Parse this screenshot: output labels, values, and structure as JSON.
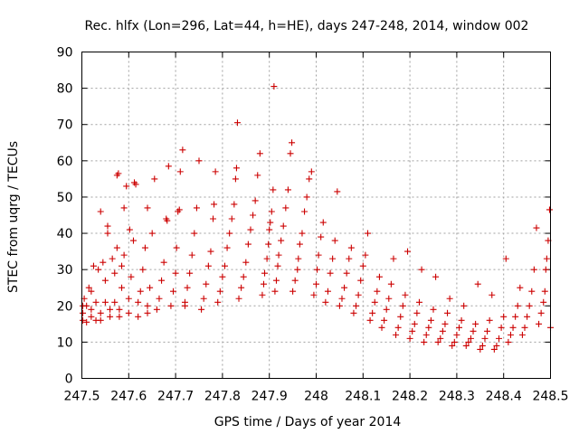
{
  "chart_data": {
    "type": "scatter",
    "title": "Rec. hlfx (Lon=296, Lat=44, h=HE), days 247-248, 2014, window 002",
    "xlabel": "GPS time / Days of year 2014",
    "ylabel": "STEC from uqrg / TECUs",
    "xlim": [
      247.5,
      248.5
    ],
    "ylim": [
      0,
      90
    ],
    "xticks": [
      247.5,
      247.6,
      247.7,
      247.8,
      247.9,
      248.0,
      248.1,
      248.2,
      248.3,
      248.4,
      248.5
    ],
    "xtick_labels": [
      "247.5",
      "247.6",
      "247.7",
      "247.8",
      "247.9",
      "248",
      "248.1",
      "248.2",
      "248.3",
      "248.4",
      "248.5"
    ],
    "yticks": [
      0,
      10,
      20,
      30,
      40,
      50,
      60,
      70,
      80,
      90
    ],
    "ytick_labels": [
      "0",
      "10",
      "20",
      "30",
      "40",
      "50",
      "60",
      "70",
      "80",
      "90"
    ],
    "grid": true,
    "marker": "+",
    "color": "#cc0000",
    "series": [
      {
        "name": "STEC",
        "points": [
          [
            247.502,
            16
          ],
          [
            247.502,
            18
          ],
          [
            247.502,
            20
          ],
          [
            247.505,
            22
          ],
          [
            247.51,
            15.5
          ],
          [
            247.51,
            20
          ],
          [
            247.515,
            25
          ],
          [
            247.52,
            17
          ],
          [
            247.52,
            19
          ],
          [
            247.52,
            24
          ],
          [
            247.525,
            31
          ],
          [
            247.53,
            16
          ],
          [
            247.53,
            21
          ],
          [
            247.535,
            30
          ],
          [
            247.54,
            16
          ],
          [
            247.54,
            18
          ],
          [
            247.54,
            46
          ],
          [
            247.545,
            32
          ],
          [
            247.55,
            21
          ],
          [
            247.55,
            27
          ],
          [
            247.555,
            42
          ],
          [
            247.555,
            40
          ],
          [
            247.56,
            17
          ],
          [
            247.56,
            19
          ],
          [
            247.565,
            33
          ],
          [
            247.57,
            21
          ],
          [
            247.57,
            29
          ],
          [
            247.575,
            36
          ],
          [
            247.575,
            56
          ],
          [
            247.578,
            56.5
          ],
          [
            247.58,
            17
          ],
          [
            247.58,
            19
          ],
          [
            247.585,
            25
          ],
          [
            247.585,
            31
          ],
          [
            247.59,
            34
          ],
          [
            247.59,
            47
          ],
          [
            247.595,
            53
          ],
          [
            247.6,
            18
          ],
          [
            247.6,
            22
          ],
          [
            247.602,
            41
          ],
          [
            247.605,
            28
          ],
          [
            247.61,
            38
          ],
          [
            247.612,
            54
          ],
          [
            247.615,
            53.5
          ],
          [
            247.62,
            17
          ],
          [
            247.62,
            21
          ],
          [
            247.625,
            24
          ],
          [
            247.63,
            30
          ],
          [
            247.635,
            36
          ],
          [
            247.64,
            18
          ],
          [
            247.64,
            20
          ],
          [
            247.64,
            47
          ],
          [
            247.645,
            25
          ],
          [
            247.65,
            40
          ],
          [
            247.655,
            55
          ],
          [
            247.66,
            19
          ],
          [
            247.665,
            22
          ],
          [
            247.67,
            27
          ],
          [
            247.675,
            32
          ],
          [
            247.68,
            44
          ],
          [
            247.682,
            43.5
          ],
          [
            247.685,
            58.5
          ],
          [
            247.69,
            20
          ],
          [
            247.695,
            24
          ],
          [
            247.7,
            29
          ],
          [
            247.702,
            36
          ],
          [
            247.705,
            46
          ],
          [
            247.708,
            46.5
          ],
          [
            247.71,
            57
          ],
          [
            247.715,
            63
          ],
          [
            247.72,
            20
          ],
          [
            247.72,
            21
          ],
          [
            247.725,
            25
          ],
          [
            247.73,
            29
          ],
          [
            247.735,
            34
          ],
          [
            247.74,
            40
          ],
          [
            247.745,
            47
          ],
          [
            247.75,
            60
          ],
          [
            247.755,
            19
          ],
          [
            247.76,
            22
          ],
          [
            247.765,
            26
          ],
          [
            247.77,
            31
          ],
          [
            247.775,
            35
          ],
          [
            247.78,
            44
          ],
          [
            247.782,
            48
          ],
          [
            247.785,
            57
          ],
          [
            247.79,
            21
          ],
          [
            247.795,
            24
          ],
          [
            247.8,
            28
          ],
          [
            247.805,
            31
          ],
          [
            247.81,
            36
          ],
          [
            247.815,
            40
          ],
          [
            247.82,
            44
          ],
          [
            247.825,
            48
          ],
          [
            247.828,
            55
          ],
          [
            247.83,
            58
          ],
          [
            247.832,
            70.5
          ],
          [
            247.835,
            22
          ],
          [
            247.84,
            25
          ],
          [
            247.845,
            28
          ],
          [
            247.85,
            32
          ],
          [
            247.855,
            37
          ],
          [
            247.86,
            41
          ],
          [
            247.865,
            45
          ],
          [
            247.87,
            49
          ],
          [
            247.875,
            56
          ],
          [
            247.88,
            62
          ],
          [
            247.885,
            23
          ],
          [
            247.888,
            26
          ],
          [
            247.89,
            29
          ],
          [
            247.895,
            33
          ],
          [
            247.898,
            37
          ],
          [
            247.9,
            41
          ],
          [
            247.902,
            43
          ],
          [
            247.905,
            46
          ],
          [
            247.908,
            52
          ],
          [
            247.91,
            80.5
          ],
          [
            247.912,
            24
          ],
          [
            247.915,
            27
          ],
          [
            247.918,
            31
          ],
          [
            247.92,
            34
          ],
          [
            247.925,
            38
          ],
          [
            247.93,
            42
          ],
          [
            247.935,
            47
          ],
          [
            247.94,
            52
          ],
          [
            247.945,
            62
          ],
          [
            247.948,
            65
          ],
          [
            247.95,
            24
          ],
          [
            247.955,
            27
          ],
          [
            247.96,
            30
          ],
          [
            247.962,
            33
          ],
          [
            247.965,
            37
          ],
          [
            247.97,
            40
          ],
          [
            247.975,
            46
          ],
          [
            247.98,
            50
          ],
          [
            247.985,
            55
          ],
          [
            247.99,
            57
          ],
          [
            247.995,
            23
          ],
          [
            248.0,
            26
          ],
          [
            248.002,
            30
          ],
          [
            248.005,
            34
          ],
          [
            248.01,
            39
          ],
          [
            248.015,
            43
          ],
          [
            248.02,
            21
          ],
          [
            248.025,
            24
          ],
          [
            248.03,
            29
          ],
          [
            248.035,
            33
          ],
          [
            248.04,
            38
          ],
          [
            248.045,
            51.5
          ],
          [
            248.05,
            20
          ],
          [
            248.055,
            22
          ],
          [
            248.06,
            25
          ],
          [
            248.065,
            29
          ],
          [
            248.07,
            33
          ],
          [
            248.075,
            36
          ],
          [
            248.08,
            18
          ],
          [
            248.085,
            20
          ],
          [
            248.09,
            23
          ],
          [
            248.095,
            27
          ],
          [
            248.1,
            31
          ],
          [
            248.105,
            34
          ],
          [
            248.11,
            40
          ],
          [
            248.115,
            16
          ],
          [
            248.12,
            18
          ],
          [
            248.125,
            21
          ],
          [
            248.13,
            24
          ],
          [
            248.135,
            28
          ],
          [
            248.14,
            14
          ],
          [
            248.145,
            16
          ],
          [
            248.15,
            19
          ],
          [
            248.155,
            22
          ],
          [
            248.16,
            26
          ],
          [
            248.165,
            33
          ],
          [
            248.17,
            12
          ],
          [
            248.175,
            14
          ],
          [
            248.18,
            17
          ],
          [
            248.185,
            20
          ],
          [
            248.19,
            23
          ],
          [
            248.195,
            35
          ],
          [
            248.2,
            11
          ],
          [
            248.205,
            13
          ],
          [
            248.21,
            15
          ],
          [
            248.215,
            18
          ],
          [
            248.22,
            21
          ],
          [
            248.225,
            30
          ],
          [
            248.23,
            10
          ],
          [
            248.235,
            12
          ],
          [
            248.24,
            14
          ],
          [
            248.245,
            16
          ],
          [
            248.25,
            19
          ],
          [
            248.255,
            28
          ],
          [
            248.26,
            10
          ],
          [
            248.265,
            11
          ],
          [
            248.27,
            13
          ],
          [
            248.275,
            15
          ],
          [
            248.28,
            18
          ],
          [
            248.285,
            22
          ],
          [
            248.29,
            9
          ],
          [
            248.295,
            10
          ],
          [
            248.3,
            12
          ],
          [
            248.305,
            14
          ],
          [
            248.31,
            16
          ],
          [
            248.315,
            20
          ],
          [
            248.32,
            9
          ],
          [
            248.325,
            10
          ],
          [
            248.33,
            11
          ],
          [
            248.335,
            13
          ],
          [
            248.34,
            15
          ],
          [
            248.345,
            26
          ],
          [
            248.35,
            8
          ],
          [
            248.355,
            9
          ],
          [
            248.36,
            11
          ],
          [
            248.365,
            13
          ],
          [
            248.37,
            16
          ],
          [
            248.375,
            23
          ],
          [
            248.38,
            8
          ],
          [
            248.385,
            9
          ],
          [
            248.39,
            11
          ],
          [
            248.395,
            14
          ],
          [
            248.4,
            17
          ],
          [
            248.405,
            33
          ],
          [
            248.41,
            10
          ],
          [
            248.415,
            12
          ],
          [
            248.42,
            14
          ],
          [
            248.425,
            17
          ],
          [
            248.43,
            20
          ],
          [
            248.435,
            25
          ],
          [
            248.44,
            12
          ],
          [
            248.445,
            14
          ],
          [
            248.45,
            17
          ],
          [
            248.455,
            20
          ],
          [
            248.46,
            24
          ],
          [
            248.465,
            30
          ],
          [
            248.47,
            41.5
          ],
          [
            248.475,
            15
          ],
          [
            248.48,
            18
          ],
          [
            248.485,
            21
          ],
          [
            248.488,
            24
          ],
          [
            248.49,
            30
          ],
          [
            248.492,
            33
          ],
          [
            248.495,
            38
          ],
          [
            248.498,
            46.5
          ],
          [
            248.5,
            14
          ]
        ]
      }
    ]
  }
}
